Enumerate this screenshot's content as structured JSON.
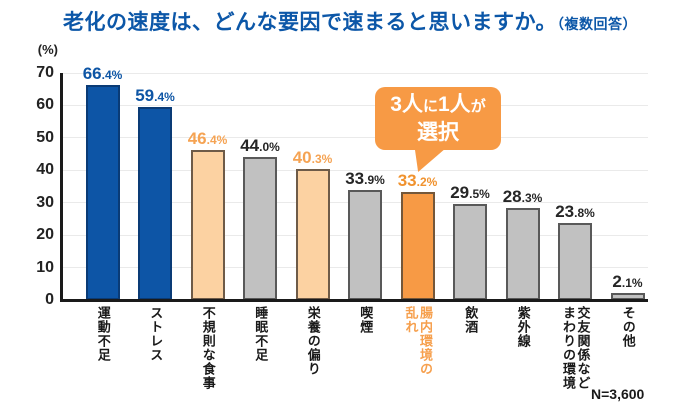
{
  "title": {
    "main": "老化の速度は、どんな要因で速まると思いますか。",
    "note": "（複数回答）"
  },
  "axis": {
    "unit": "(%)"
  },
  "callout": {
    "big1": "3人",
    "small1": "に",
    "big2": "1人",
    "small2": "が",
    "line2": "選択"
  },
  "footnote": {
    "text": "N=3,600"
  },
  "colors": {
    "blue": {
      "fill": "#0D55A6",
      "border": "#0A3B76",
      "label": "#0D55A5",
      "category": "#1A1A1A"
    },
    "lightOrange": {
      "fill": "#FCD2A2",
      "border": "#6E5B48",
      "label": "#F5A353",
      "category": "#1A1A1A"
    },
    "orange": {
      "fill": "#F79A45",
      "border": "#74573A",
      "label": "#F0922E",
      "category": "#F6A04E"
    },
    "gray": {
      "fill": "#C1C1C1",
      "border": "#595959",
      "label": "#262626",
      "category": "#1A1A1A"
    }
  },
  "chart_data": {
    "type": "bar",
    "title": "老化の速度は、どんな要因で速まると思いますか。（複数回答）",
    "ylabel": "(%)",
    "ylim": [
      0,
      70
    ],
    "ytick_interval": 10,
    "grid": true,
    "legend": "none",
    "n_label": "N=3,600",
    "categories": [
      "運動不足",
      "ストレス",
      "不規則な食事",
      "睡眠不足",
      "栄養の偏り",
      "喫煙",
      "腸内環境の乱れ",
      "飲酒",
      "紫外線",
      "交友関係などまわりの環境",
      "その他"
    ],
    "category_display": [
      "運動不足",
      "ストレス",
      "不規則な食事",
      "睡眠不足",
      "栄養の偏り",
      "喫煙",
      "腸内環境の\n乱れ",
      "飲酒",
      "紫外線",
      "交友関係など\nまわりの環境",
      "その他"
    ],
    "values": [
      66.4,
      59.4,
      46.4,
      44.0,
      40.3,
      33.9,
      33.2,
      29.5,
      28.3,
      23.8,
      2.1
    ],
    "value_labels": [
      "66.4",
      "59.4",
      "46.4",
      "44.0",
      "40.3",
      "33.9",
      "33.2",
      "29.5",
      "28.3",
      "23.8",
      "2.1"
    ],
    "value_suffix": "%",
    "bar_styles": [
      "blue",
      "blue",
      "lightOrange",
      "gray",
      "lightOrange",
      "gray",
      "orange",
      "gray",
      "gray",
      "gray",
      "gray"
    ],
    "annotation": {
      "text": "3人に1人が選択",
      "target_category": "腸内環境の乱れ"
    }
  }
}
